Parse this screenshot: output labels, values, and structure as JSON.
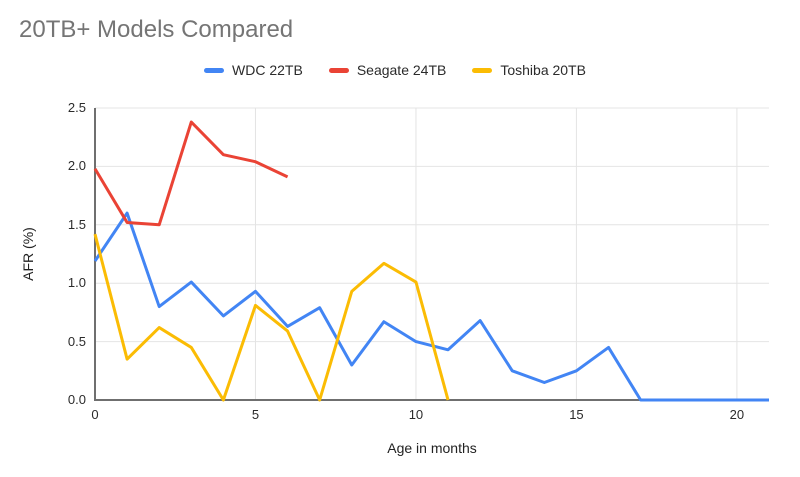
{
  "chart_data": {
    "type": "line",
    "title": "20TB+ Models Compared",
    "xlabel": "Age in months",
    "ylabel": "AFR (%)",
    "xlim": [
      0,
      21
    ],
    "ylim": [
      0,
      2.5
    ],
    "x_ticks": [
      0,
      5,
      10,
      15,
      20
    ],
    "y_ticks": [
      0.0,
      0.5,
      1.0,
      1.5,
      2.0,
      2.5
    ],
    "grid": true,
    "legend_position": "top",
    "line_width": 3,
    "grid_color": "#e4e4e4",
    "axis_color": "#6f6f6f",
    "title_color": "#757575",
    "series": [
      {
        "name": "WDC 22TB",
        "color": "#4285F4",
        "x": [
          0,
          1,
          2,
          3,
          4,
          5,
          6,
          7,
          8,
          9,
          10,
          11,
          12,
          13,
          14,
          15,
          16,
          17,
          18,
          19,
          20,
          21
        ],
        "values": [
          1.19,
          1.6,
          0.8,
          1.01,
          0.72,
          0.93,
          0.63,
          0.79,
          0.3,
          0.67,
          0.5,
          0.43,
          0.68,
          0.25,
          0.15,
          0.25,
          0.45,
          0.0,
          0.0,
          0.0,
          0.0,
          0.0
        ]
      },
      {
        "name": "Seagate 24TB",
        "color": "#EA4335",
        "x": [
          0,
          1,
          2,
          3,
          4,
          5,
          6
        ],
        "values": [
          1.98,
          1.52,
          1.5,
          2.38,
          2.1,
          2.04,
          1.91
        ]
      },
      {
        "name": "Toshiba 20TB",
        "color": "#FBBC04",
        "x": [
          0,
          1,
          2,
          3,
          4,
          5,
          6,
          7,
          8,
          9,
          10,
          11
        ],
        "values": [
          1.42,
          0.35,
          0.62,
          0.45,
          0.0,
          0.81,
          0.59,
          0.0,
          0.93,
          1.17,
          1.01,
          0.0
        ]
      }
    ]
  }
}
